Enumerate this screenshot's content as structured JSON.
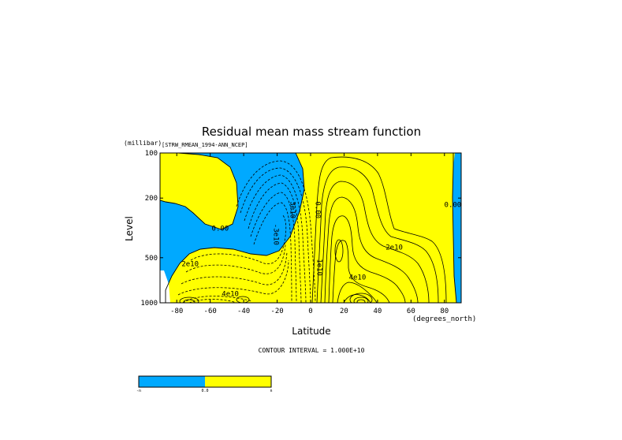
{
  "chart_data": {
    "type": "contour",
    "title": "Residual mean mass stream function",
    "dataset_label": "[STRW_RMEAN_1994-ANN_NCEP]",
    "ylabel": "Level",
    "yunits": "(millibar)",
    "xlabel": "Latitude",
    "xunits": "(degrees_north)",
    "xlim": [
      -90,
      90
    ],
    "ylim": [
      1000,
      100
    ],
    "y_scale": "log",
    "x_ticks": [
      -80,
      -60,
      -40,
      -20,
      0,
      20,
      40,
      60,
      80
    ],
    "y_ticks": [
      100,
      200,
      500,
      1000
    ],
    "contour_interval_text": "CONTOUR INTERVAL = 1.000E+10",
    "contour_labels": [
      {
        "text": "0.00",
        "lat": -54,
        "lev": 330
      },
      {
        "text": "2e10",
        "lat": -72,
        "lev": 570
      },
      {
        "text": "4e10",
        "lat": -48,
        "lev": 900
      },
      {
        "text": "-3e10",
        "lat": -22,
        "lev": 350
      },
      {
        "text": "3e10",
        "lat": -12,
        "lev": 240
      },
      {
        "text": "0.00",
        "lat": 3,
        "lev": 240
      },
      {
        "text": "2e10",
        "lat": 50,
        "lev": 440
      },
      {
        "text": "4e10",
        "lat": 28,
        "lev": 700
      },
      {
        "text": "1e10",
        "lat": 4,
        "lev": 580
      },
      {
        "text": "0.00",
        "lat": 85,
        "lev": 230
      }
    ],
    "colors": {
      "negative": "#00a9ff",
      "positive": "#ffff00",
      "lines": "#000000"
    },
    "colorbar": {
      "min_label": "-n",
      "mid_label": "0.0",
      "max_label": "n"
    }
  }
}
